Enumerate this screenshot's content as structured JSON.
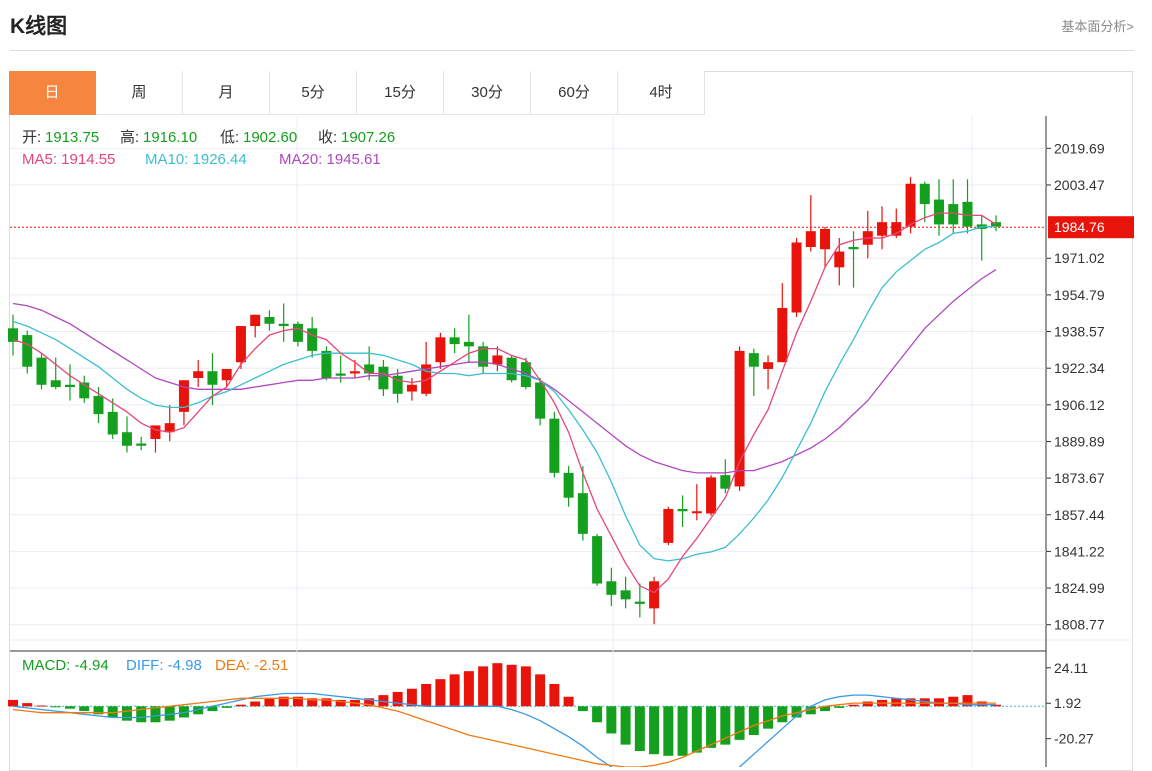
{
  "header": {
    "title": "K线图",
    "more_link": "基本面分析>"
  },
  "tabs": [
    {
      "label": "日",
      "active": true
    },
    {
      "label": "周"
    },
    {
      "label": "月"
    },
    {
      "label": "5分"
    },
    {
      "label": "15分"
    },
    {
      "label": "30分"
    },
    {
      "label": "60分"
    },
    {
      "label": "4时"
    }
  ],
  "colors": {
    "up": "#e8140b",
    "down": "#14a01e",
    "ma5": "#e8457a",
    "ma10": "#3bbfd0",
    "ma20": "#b047c0",
    "macd_bar_up": "#e8140b",
    "macd_bar_down": "#14a01e",
    "diff": "#3a9ae8",
    "dea": "#f07a12",
    "accent": "#f6853f"
  },
  "ohlc_info": {
    "open_label": "开:",
    "open": "1913.75",
    "high_label": "高:",
    "high": "1916.10",
    "low_label": "低:",
    "low": "1902.60",
    "close_label": "收:",
    "close": "1907.26"
  },
  "ma_info": {
    "ma5": "MA5: 1914.55",
    "ma10": "MA10: 1926.44",
    "ma20": "MA20: 1945.61"
  },
  "macd_info": {
    "macd": "MACD: -4.94",
    "diff": "DIFF: -4.98",
    "dea": "DEA: -2.51"
  },
  "chart_data": [
    {
      "type": "candlestick",
      "title": "",
      "y_ticks": [
        "2019.69",
        "2003.47",
        "1971.02",
        "1954.79",
        "1938.57",
        "1922.34",
        "1906.12",
        "1889.89",
        "1873.67",
        "1857.44",
        "1841.22",
        "1824.99",
        "1808.77"
      ],
      "current_price": "1984.76",
      "ylim": [
        1802,
        2034
      ],
      "candles": [
        {
          "o": 1940,
          "h": 1946,
          "c": 1934,
          "l": 1928
        },
        {
          "o": 1937,
          "h": 1939,
          "c": 1923,
          "l": 1920
        },
        {
          "o": 1927,
          "h": 1929,
          "c": 1915,
          "l": 1913
        },
        {
          "o": 1917,
          "h": 1927,
          "c": 1914,
          "l": 1913
        },
        {
          "o": 1915,
          "h": 1924,
          "c": 1914,
          "l": 1908
        },
        {
          "o": 1916,
          "h": 1919,
          "c": 1909,
          "l": 1907
        },
        {
          "o": 1910,
          "h": 1914,
          "c": 1902,
          "l": 1898
        },
        {
          "o": 1903,
          "h": 1909,
          "c": 1893,
          "l": 1891
        },
        {
          "o": 1894,
          "h": 1901,
          "c": 1888,
          "l": 1885
        },
        {
          "o": 1889,
          "h": 1892,
          "c": 1888,
          "l": 1886
        },
        {
          "o": 1891,
          "h": 1896,
          "c": 1897,
          "l": 1885
        },
        {
          "o": 1894,
          "h": 1906,
          "c": 1898,
          "l": 1890
        },
        {
          "o": 1903,
          "h": 1917,
          "c": 1917,
          "l": 1897
        },
        {
          "o": 1918,
          "h": 1926,
          "c": 1921,
          "l": 1914
        },
        {
          "o": 1921,
          "h": 1929,
          "c": 1915,
          "l": 1906
        },
        {
          "o": 1917,
          "h": 1921,
          "c": 1922,
          "l": 1914
        },
        {
          "o": 1925,
          "h": 1941,
          "c": 1941,
          "l": 1922
        },
        {
          "o": 1941,
          "h": 1946,
          "c": 1946,
          "l": 1936
        },
        {
          "o": 1945,
          "h": 1948,
          "c": 1942,
          "l": 1939
        },
        {
          "o": 1942,
          "h": 1951,
          "c": 1941,
          "l": 1934
        },
        {
          "o": 1942,
          "h": 1943,
          "c": 1934,
          "l": 1932
        },
        {
          "o": 1940,
          "h": 1945,
          "c": 1930,
          "l": 1927
        },
        {
          "o": 1930,
          "h": 1932,
          "c": 1918,
          "l": 1917
        },
        {
          "o": 1920,
          "h": 1928,
          "c": 1919,
          "l": 1916
        },
        {
          "o": 1920,
          "h": 1926,
          "c": 1921,
          "l": 1918
        },
        {
          "o": 1924,
          "h": 1932,
          "c": 1920,
          "l": 1917
        },
        {
          "o": 1923,
          "h": 1926,
          "c": 1913,
          "l": 1910
        },
        {
          "o": 1919,
          "h": 1922,
          "c": 1911,
          "l": 1907
        },
        {
          "o": 1912,
          "h": 1918,
          "c": 1915,
          "l": 1908
        },
        {
          "o": 1911,
          "h": 1934,
          "c": 1924,
          "l": 1910
        },
        {
          "o": 1925,
          "h": 1938,
          "c": 1936,
          "l": 1922
        },
        {
          "o": 1936,
          "h": 1940,
          "c": 1933,
          "l": 1929
        },
        {
          "o": 1934,
          "h": 1946,
          "c": 1932,
          "l": 1925
        },
        {
          "o": 1932,
          "h": 1934,
          "c": 1923,
          "l": 1920
        },
        {
          "o": 1924,
          "h": 1932,
          "c": 1928,
          "l": 1921
        },
        {
          "o": 1927,
          "h": 1928,
          "c": 1917,
          "l": 1916
        },
        {
          "o": 1925,
          "h": 1927,
          "c": 1914,
          "l": 1913
        },
        {
          "o": 1916,
          "h": 1918,
          "c": 1900,
          "l": 1897
        },
        {
          "o": 1900,
          "h": 1903,
          "c": 1876,
          "l": 1874
        },
        {
          "o": 1876,
          "h": 1879,
          "c": 1865,
          "l": 1861
        },
        {
          "o": 1867,
          "h": 1879,
          "c": 1849,
          "l": 1846
        },
        {
          "o": 1848,
          "h": 1849,
          "c": 1827,
          "l": 1826
        },
        {
          "o": 1828,
          "h": 1834,
          "c": 1822,
          "l": 1817
        },
        {
          "o": 1824,
          "h": 1830,
          "c": 1820,
          "l": 1816
        },
        {
          "o": 1819,
          "h": 1827,
          "c": 1818,
          "l": 1812
        },
        {
          "o": 1816,
          "h": 1830,
          "c": 1828,
          "l": 1809
        },
        {
          "o": 1845,
          "h": 1861,
          "c": 1860,
          "l": 1844
        },
        {
          "o": 1860,
          "h": 1866,
          "c": 1859,
          "l": 1852
        },
        {
          "o": 1859,
          "h": 1871,
          "c": 1859,
          "l": 1855
        },
        {
          "o": 1858,
          "h": 1875,
          "c": 1874,
          "l": 1857
        },
        {
          "o": 1875,
          "h": 1882,
          "c": 1869,
          "l": 1867
        },
        {
          "o": 1870,
          "h": 1932,
          "c": 1930,
          "l": 1868
        },
        {
          "o": 1929,
          "h": 1931,
          "c": 1923,
          "l": 1910
        },
        {
          "o": 1922,
          "h": 1928,
          "c": 1925,
          "l": 1913
        },
        {
          "o": 1925,
          "h": 1960,
          "c": 1949,
          "l": 1925
        },
        {
          "o": 1947,
          "h": 1980,
          "c": 1978,
          "l": 1945
        },
        {
          "o": 1976,
          "h": 1999,
          "c": 1983,
          "l": 1974
        },
        {
          "o": 1975,
          "h": 1985,
          "c": 1984,
          "l": 1967
        },
        {
          "o": 1967,
          "h": 1980,
          "c": 1974,
          "l": 1959
        },
        {
          "o": 1976,
          "h": 1983,
          "c": 1975,
          "l": 1958
        },
        {
          "o": 1977,
          "h": 1992,
          "c": 1983,
          "l": 1971
        },
        {
          "o": 1981,
          "h": 1994,
          "c": 1987,
          "l": 1975
        },
        {
          "o": 1981,
          "h": 1993,
          "c": 1987,
          "l": 1980
        },
        {
          "o": 1985,
          "h": 2007,
          "c": 2004,
          "l": 1982
        },
        {
          "o": 2004,
          "h": 2005,
          "c": 1995,
          "l": 1987
        },
        {
          "o": 1997,
          "h": 2006,
          "c": 1986,
          "l": 1981
        },
        {
          "o": 1995,
          "h": 2006,
          "c": 1986,
          "l": 1982
        },
        {
          "o": 1996,
          "h": 2006,
          "c": 1985,
          "l": 1982
        },
        {
          "o": 1986,
          "h": 1990,
          "c": 1984,
          "l": 1970
        },
        {
          "o": 1987,
          "h": 1990,
          "c": 1985,
          "l": 1983
        }
      ],
      "ma5": [
        1935,
        1933,
        1929,
        1924,
        1919,
        1915,
        1911,
        1907,
        1903,
        1898,
        1895,
        1894,
        1896,
        1903,
        1910,
        1914,
        1924,
        1931,
        1937,
        1939,
        1940,
        1937,
        1935,
        1929,
        1925,
        1920,
        1920,
        1917,
        1916,
        1917,
        1921,
        1925,
        1929,
        1931,
        1931,
        1928,
        1926,
        1917,
        1907,
        1894,
        1876,
        1860,
        1848,
        1836,
        1826,
        1823,
        1829,
        1839,
        1847,
        1856,
        1865,
        1881,
        1893,
        1904,
        1921,
        1938,
        1952,
        1967,
        1977,
        1979,
        1980,
        1980,
        1982,
        1986,
        1989,
        1991,
        1991,
        1990,
        1990,
        1986
      ],
      "ma10": [
        1943,
        1941,
        1938,
        1935,
        1931,
        1927,
        1923,
        1918,
        1913,
        1909,
        1906,
        1905,
        1905,
        1907,
        1910,
        1912,
        1915,
        1918,
        1921,
        1924,
        1926,
        1928,
        1929,
        1929,
        1929,
        1929,
        1928,
        1926,
        1924,
        1921,
        1920,
        1920,
        1919,
        1920,
        1920,
        1920,
        1919,
        1917,
        1912,
        1904,
        1895,
        1885,
        1872,
        1857,
        1844,
        1838,
        1837,
        1838,
        1840,
        1841,
        1843,
        1849,
        1856,
        1864,
        1874,
        1886,
        1898,
        1912,
        1924,
        1935,
        1947,
        1958,
        1965,
        1970,
        1975,
        1978,
        1982,
        1983,
        1985,
        1985
      ],
      "ma20": [
        1951,
        1950,
        1948,
        1945,
        1942,
        1938,
        1934,
        1930,
        1926,
        1922,
        1918,
        1916,
        1914,
        1913,
        1913,
        1913,
        1913,
        1914,
        1915,
        1916,
        1917,
        1917,
        1918,
        1918,
        1918,
        1919,
        1919,
        1920,
        1921,
        1922,
        1923,
        1924,
        1925,
        1925,
        1924,
        1922,
        1920,
        1917,
        1913,
        1908,
        1903,
        1898,
        1893,
        1888,
        1884,
        1881,
        1879,
        1877,
        1876,
        1876,
        1876,
        1877,
        1877,
        1879,
        1881,
        1884,
        1887,
        1891,
        1896,
        1902,
        1908,
        1916,
        1924,
        1932,
        1940,
        1946,
        1952,
        1957,
        1962,
        1966
      ]
    },
    {
      "type": "bar",
      "title": "",
      "y_ticks": [
        "24.11",
        "1.92",
        "-20.27"
      ],
      "ylim": [
        -38,
        34
      ],
      "macd_hist": [
        4,
        2,
        0.5,
        -0.5,
        -1.5,
        -3,
        -5,
        -7,
        -9,
        -10,
        -10,
        -9,
        -7,
        -5,
        -3,
        -1,
        1,
        3,
        5,
        6,
        6,
        5,
        5,
        4,
        4,
        5,
        7,
        9,
        11,
        14,
        17,
        20,
        22,
        25,
        27,
        26,
        25,
        20,
        14,
        6,
        -3,
        -10,
        -17,
        -24,
        -28,
        -30,
        -31,
        -31,
        -29,
        -26,
        -24,
        -21,
        -18,
        -14,
        -10,
        -7,
        -5,
        -3,
        -1,
        1,
        3,
        4,
        5,
        5,
        5,
        5,
        6,
        7,
        3,
        1
      ],
      "diff": [
        0,
        -1,
        -2,
        -3,
        -4,
        -5,
        -6,
        -7,
        -7,
        -7,
        -6,
        -5,
        -4,
        -2,
        0,
        2,
        4,
        6,
        7,
        8,
        8,
        8,
        7,
        6,
        5,
        4,
        3,
        2,
        1,
        0,
        0,
        0,
        0,
        0,
        0,
        -2,
        -5,
        -9,
        -14,
        -19,
        -25,
        -32,
        -38,
        -44,
        -49,
        -54,
        -57,
        -58,
        -56,
        -52,
        -46,
        -38,
        -30,
        -22,
        -14,
        -6,
        0,
        4,
        6,
        7,
        7,
        6,
        5,
        4,
        3,
        2,
        2,
        1,
        1,
        1
      ],
      "dea": [
        -2,
        -3,
        -4,
        -4,
        -4,
        -4,
        -4,
        -4,
        -3,
        -2,
        -1,
        0,
        1,
        2,
        3,
        4,
        5,
        5,
        5,
        5,
        5,
        4,
        4,
        3,
        2,
        1,
        -1,
        -3,
        -6,
        -9,
        -12,
        -15,
        -18,
        -20,
        -22,
        -24,
        -26,
        -28,
        -30,
        -32,
        -34,
        -36,
        -37,
        -38,
        -38,
        -37,
        -35,
        -32,
        -28,
        -24,
        -20,
        -16,
        -12,
        -9,
        -6,
        -4,
        -2,
        0,
        1,
        2,
        2,
        2,
        2,
        2,
        2,
        2,
        2,
        2,
        2,
        2
      ]
    }
  ]
}
